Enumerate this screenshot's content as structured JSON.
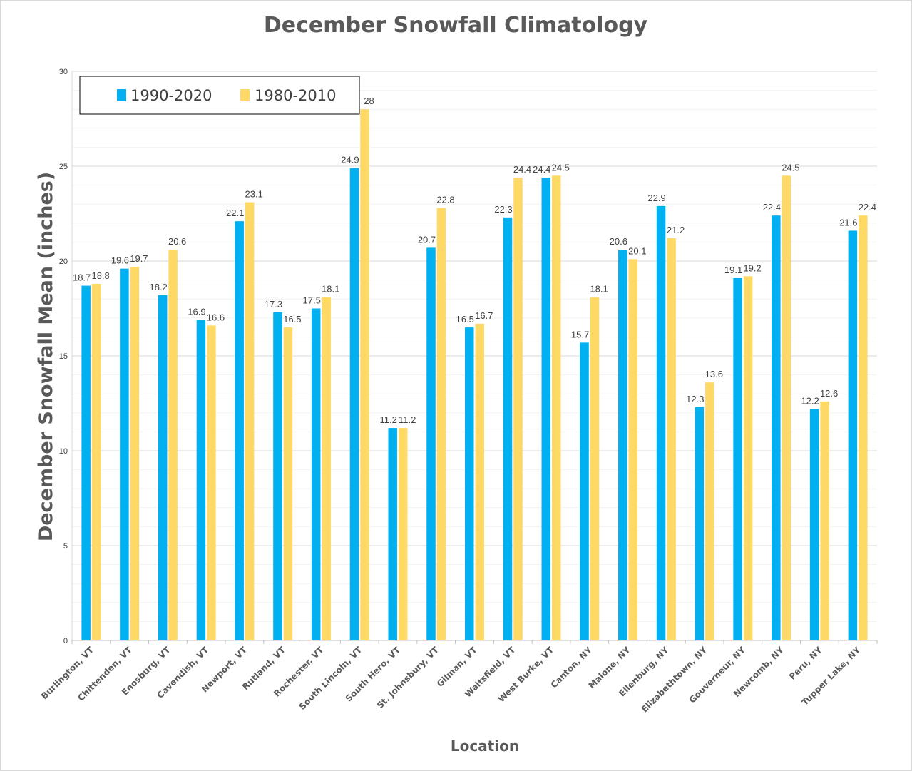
{
  "chart_data": {
    "type": "bar",
    "title": "December Snowfall Climatology",
    "xlabel": "Location",
    "ylabel": "December Snowfall Mean (inches)",
    "ylim": [
      0,
      30
    ],
    "yticks": [
      "0",
      "5",
      "10",
      "15",
      "20",
      "25",
      "30"
    ],
    "grid": true,
    "legend_position": "top-left",
    "categories": [
      "Burlington, VT",
      "Chittenden, VT",
      "Enosburg, VT",
      "Cavendish, VT",
      "Newport, VT",
      "Rutland, VT",
      "Rochester, VT",
      "South Lincoln, VT",
      "South Hero, VT",
      "St. Johnsbury, VT",
      "Gilman, VT",
      "Waitsfield, VT",
      "West Burke, VT",
      "Canton, NY",
      "Malone, NY",
      "Ellenburg, NY",
      "Elizabethtown, NY",
      "Gouverneur, NY",
      "Newcomb, NY",
      "Peru, NY",
      "Tupper Lake, NY"
    ],
    "series": [
      {
        "name": "1990-2020",
        "color": "#00b0f0",
        "values": [
          18.7,
          19.6,
          18.2,
          16.9,
          22.1,
          17.3,
          17.5,
          24.9,
          11.2,
          20.7,
          16.5,
          22.3,
          24.4,
          15.7,
          20.6,
          22.9,
          12.3,
          19.1,
          22.4,
          12.2,
          21.6
        ],
        "labels": [
          "18.7",
          "19.6",
          "18.2",
          "16.9",
          "22.1",
          "17.3",
          "17.5",
          "24.9",
          "11.2",
          "20.7",
          "16.5",
          "22.3",
          "24.4",
          "15.7",
          "20.6",
          "22.9",
          "12.3",
          "19.1",
          "22.4",
          "12.2",
          "21.6"
        ]
      },
      {
        "name": "1980-2010",
        "color": "#ffd966",
        "values": [
          18.8,
          19.7,
          20.6,
          16.6,
          23.1,
          16.5,
          18.1,
          28,
          11.2,
          22.8,
          16.7,
          24.4,
          24.5,
          18.1,
          20.1,
          21.2,
          13.6,
          19.2,
          24.5,
          12.6,
          22.4
        ],
        "labels": [
          "18.8",
          "19.7",
          "20.6",
          "16.6",
          "23.1",
          "16.5",
          "18.1",
          "28",
          "11.2",
          "22.8",
          "16.7",
          "24.4",
          "24.5",
          "18.1",
          "20.1",
          "21.2",
          "13.6",
          "19.2",
          "24.5",
          "12.6",
          "22.4"
        ]
      }
    ]
  }
}
